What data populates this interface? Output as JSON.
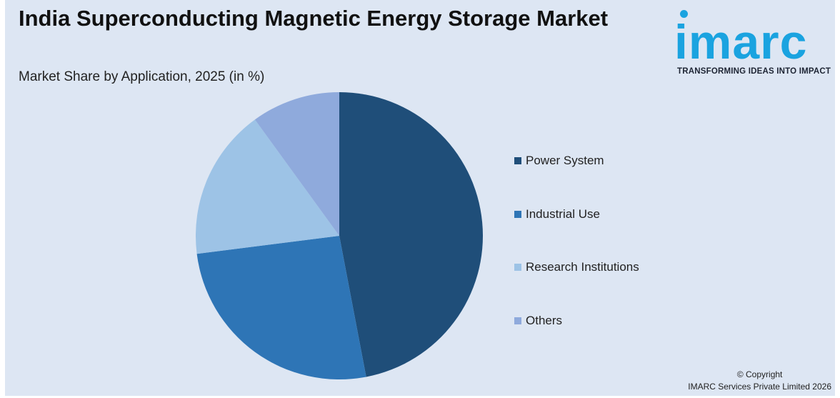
{
  "header": {
    "title": "India Superconducting Magnetic Energy Storage Market",
    "subtitle": "Market Share by Application, 2025 (in %)"
  },
  "logo": {
    "word": "imarc",
    "tagline": "TRANSFORMING IDEAS INTO IMPACT",
    "color": "#1aa3e0"
  },
  "chart_data": {
    "type": "pie",
    "title": "Market Share by Application, 2025 (in %)",
    "categories": [
      "Power System",
      "Industrial Use",
      "Research Institutions",
      "Others"
    ],
    "values": [
      47,
      26,
      17,
      10
    ],
    "colors": [
      "#1f4e79",
      "#2e75b6",
      "#9dc3e6",
      "#8faadc"
    ],
    "legend_position": "right",
    "start_angle_deg": 0,
    "direction": "clockwise"
  },
  "footer": {
    "copyright_line1": "© Copyright",
    "copyright_line2": "IMARC Services Private Limited 2026"
  }
}
